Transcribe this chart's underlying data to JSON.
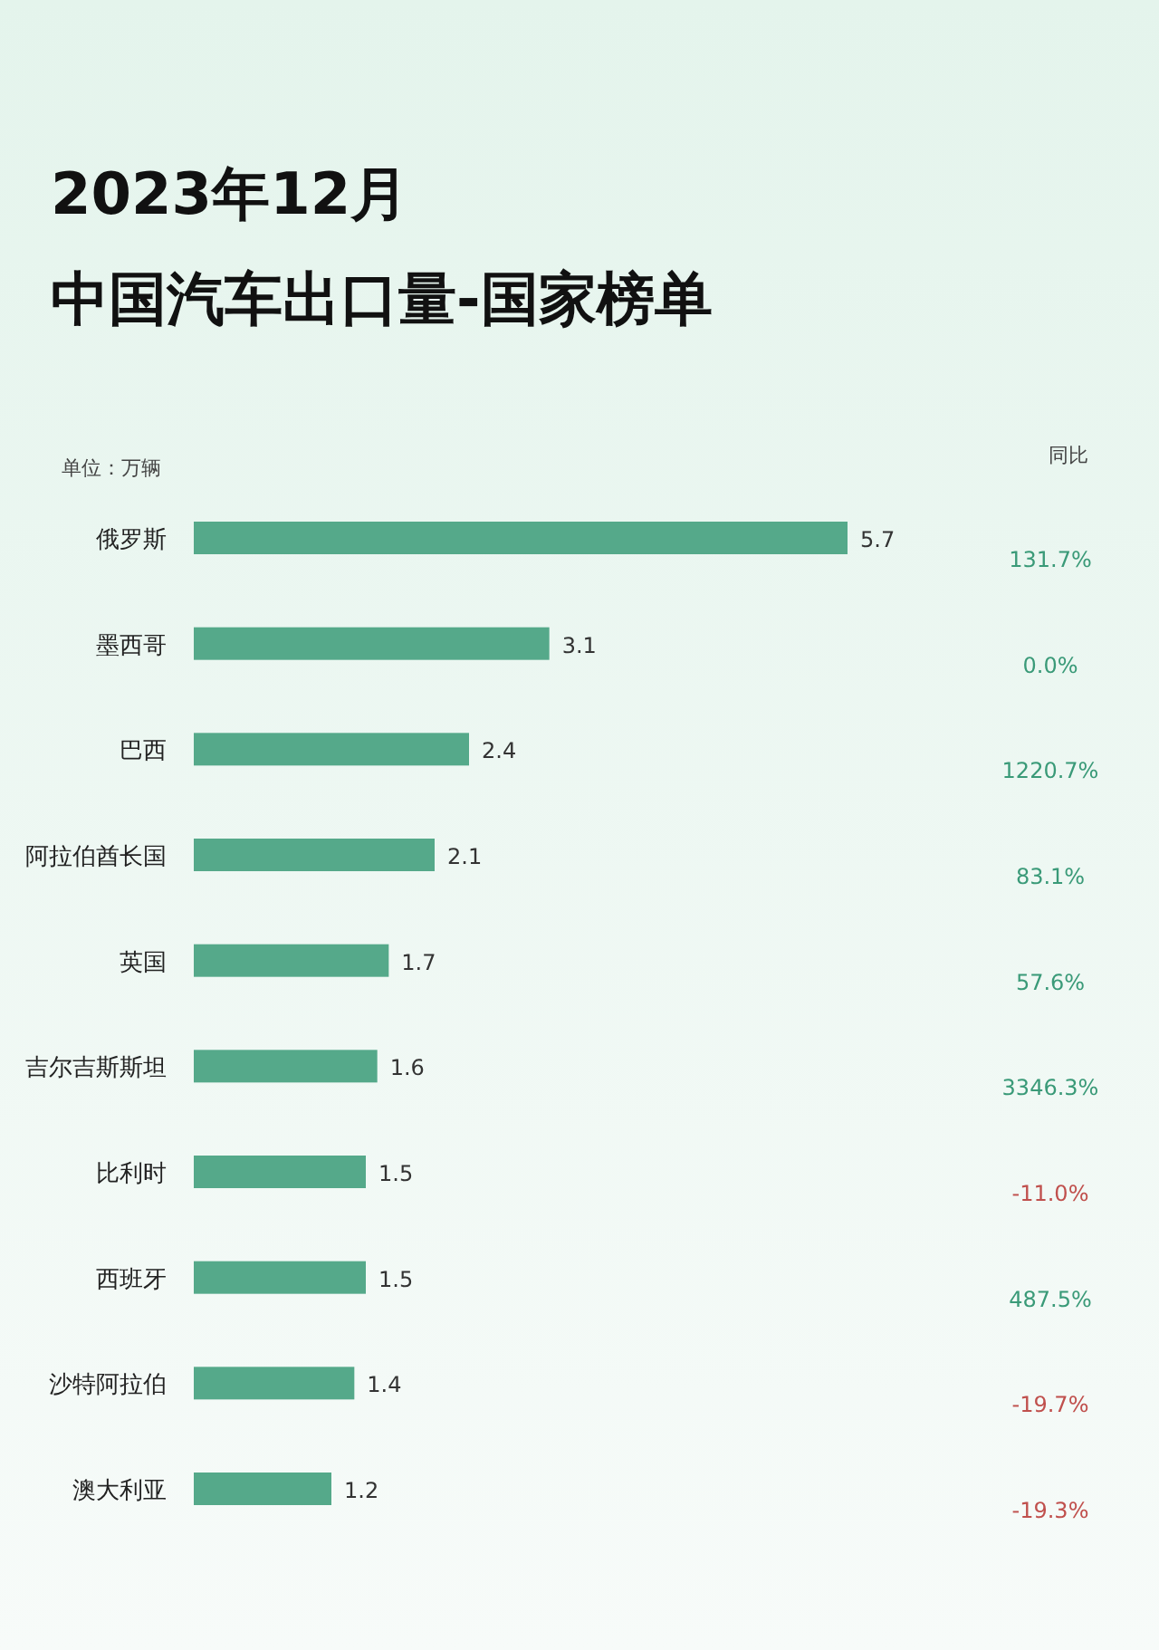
{
  "chart_data": {
    "type": "bar",
    "orientation": "horizontal",
    "title": "2023年12月",
    "subtitle": "中国汽车出口量-国家榜单",
    "categories": [
      "俄罗斯",
      "墨西哥",
      "巴西",
      "阿拉伯酋长国",
      "英国",
      "吉尔吉斯斯坦",
      "比利时",
      "西班牙",
      "沙特阿拉伯",
      "澳大利亚"
    ],
    "values": [
      5.7,
      3.1,
      2.4,
      2.1,
      1.7,
      1.6,
      1.5,
      1.5,
      1.4,
      1.2
    ],
    "color": "#55a98a",
    "data_labels": true,
    "annotations": [
      "单位：万辆",
      "同比",
      "131.7%",
      "0.0%",
      "1220.7%",
      "83.1%",
      "57.6%",
      "3346.3%",
      "-11.0%",
      "487.5%",
      "-19.7%",
      "-19.3%"
    ]
  }
}
